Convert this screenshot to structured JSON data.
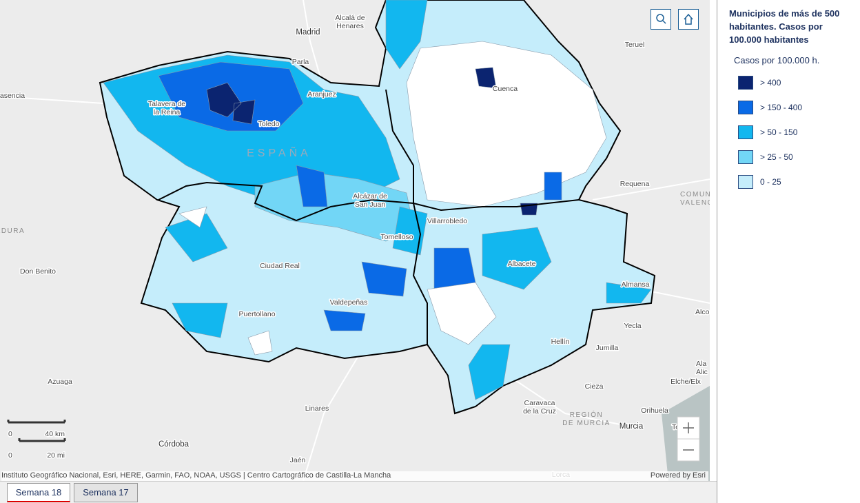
{
  "map": {
    "labels": [
      {
        "lines": [
          "Madrid"
        ]
      },
      {
        "lines": [
          "Alcalá de",
          "Henares"
        ]
      },
      {
        "lines": [
          "Parla"
        ]
      },
      {
        "lines": [
          "Teruel"
        ]
      },
      {
        "lines": [
          "asencia"
        ]
      },
      {
        "lines": [
          "Talavera de",
          "la Reina"
        ]
      },
      {
        "lines": [
          "Aranjuez"
        ]
      },
      {
        "lines": [
          "Toledo"
        ]
      },
      {
        "lines": [
          "ESPAÑA"
        ]
      },
      {
        "lines": [
          "Cuenca"
        ]
      },
      {
        "lines": [
          "Requena"
        ]
      },
      {
        "lines": [
          "COMUN",
          "VALENC"
        ]
      },
      {
        "lines": [
          "MADURA"
        ]
      },
      {
        "lines": [
          "Don Benito"
        ]
      },
      {
        "lines": [
          "Alcázar de",
          "San Juan"
        ]
      },
      {
        "lines": [
          "Villarrobledo"
        ]
      },
      {
        "lines": [
          "Tomelloso"
        ]
      },
      {
        "lines": [
          "Ciudad Real"
        ]
      },
      {
        "lines": [
          "Albacete"
        ]
      },
      {
        "lines": [
          "Almansa"
        ]
      },
      {
        "lines": [
          "Valdepeñas"
        ]
      },
      {
        "lines": [
          "Puertollano"
        ]
      },
      {
        "lines": [
          "Yecla"
        ]
      },
      {
        "lines": [
          "Alco"
        ]
      },
      {
        "lines": [
          "Hellín"
        ]
      },
      {
        "lines": [
          "Jumilla"
        ]
      },
      {
        "lines": [
          "Azuaga"
        ]
      },
      {
        "lines": [
          "Linares"
        ]
      },
      {
        "lines": [
          "Cieza"
        ]
      },
      {
        "lines": [
          "Elche/Elx"
        ]
      },
      {
        "lines": [
          "Caravaca",
          "de la Cruz"
        ]
      },
      {
        "lines": [
          "REGIÓN",
          "DE MURCIA"
        ]
      },
      {
        "lines": [
          "Murcia"
        ]
      },
      {
        "lines": [
          "Orihuela"
        ]
      },
      {
        "lines": [
          "Córdoba"
        ]
      },
      {
        "lines": [
          "Jaén"
        ]
      },
      {
        "lines": [
          "Lorca"
        ]
      },
      {
        "lines": [
          "Ala",
          "Alic"
        ]
      },
      {
        "lines": [
          "To"
        ]
      }
    ],
    "scale": {
      "km_zero": "0",
      "km": "40 km",
      "mi_zero": "0",
      "mi": "20 mi"
    },
    "attribution": "Instituto Geográfico Nacional, Esri, HERE, Garmin, FAO, NOAA, USGS | Centro Cartográfico de Castilla-La Mancha",
    "powered_by": "Powered by Esri"
  },
  "legend": {
    "title": "Municipios de más de 500 habitantes. Casos por 100.000 habitantes",
    "subtitle": "Casos por 100.000 h.",
    "items": [
      {
        "label": "> 400",
        "color": "#0b2470"
      },
      {
        "label": "> 150 - 400",
        "color": "#0a6ae6"
      },
      {
        "label": "> 50 - 150",
        "color": "#12b7ef"
      },
      {
        "label": "> 25 - 50",
        "color": "#72d6f6"
      },
      {
        "label": "0 - 25",
        "color": "#c5edfb"
      }
    ]
  },
  "tabs": [
    "Semana 18",
    "Semana 17"
  ]
}
